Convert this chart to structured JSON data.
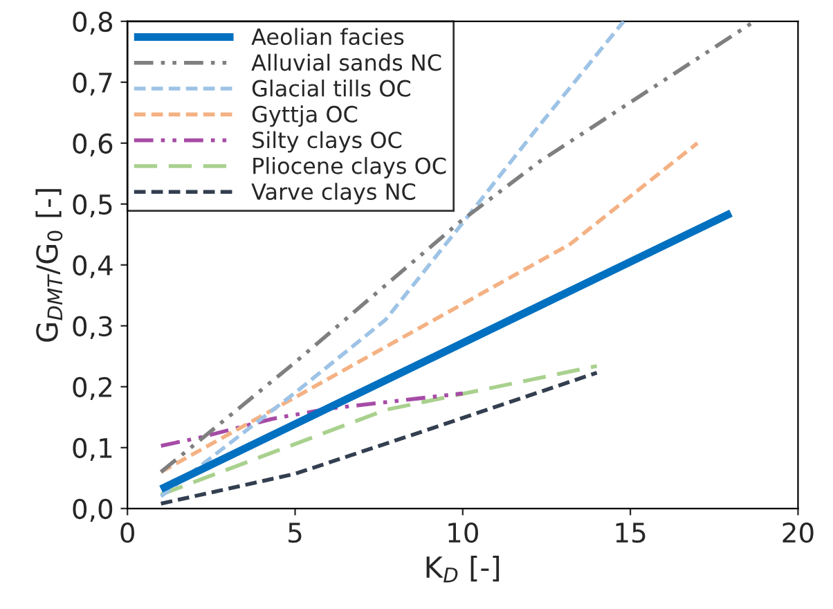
{
  "chart_data": {
    "type": "line",
    "xlabel": "K$_{D}$ [-]",
    "ylabel": "G$_{DMT}$/G$_{0}$ [-]",
    "xlim": [
      0,
      20
    ],
    "xticks": [
      0,
      5,
      10,
      15,
      20
    ],
    "ylim": [
      0,
      0.8
    ],
    "yticks": [
      {
        "value": 0,
        "label": "0,0"
      },
      {
        "value": 0.1,
        "label": "0,1"
      },
      {
        "value": 0.2,
        "label": "0,2"
      },
      {
        "value": 0.3,
        "label": "0,3"
      },
      {
        "value": 0.4,
        "label": "0,4"
      },
      {
        "value": 0.5,
        "label": "0,5"
      },
      {
        "value": 0.6,
        "label": "0,6"
      },
      {
        "value": 0.7,
        "label": "0,7"
      },
      {
        "value": 0.8,
        "label": "0,8"
      }
    ],
    "grid": false,
    "legend": "top left",
    "series": [
      {
        "name": "Aeolian facies",
        "color": "#0070c0",
        "line_style": "solid",
        "x": [
          1,
          18
        ],
        "values": [
          0.032,
          0.485
        ]
      },
      {
        "name": "Alluvial sands NC",
        "color": "#7f7f7f",
        "line_style": "dashdotdot",
        "x": [
          1,
          5,
          9.9,
          12.3,
          18.7
        ],
        "values": [
          0.06,
          0.24,
          0.47,
          0.57,
          0.8
        ]
      },
      {
        "name": "Glacial tills OC",
        "color": "#9dc3e6",
        "line_style": "dashed",
        "x": [
          1,
          5,
          7.7,
          10.3,
          12.3,
          14.8
        ],
        "values": [
          0.02,
          0.19,
          0.31,
          0.49,
          0.63,
          0.8
        ]
      },
      {
        "name": "Gyttja OC",
        "color": "#f4b183",
        "line_style": "dashed",
        "x": [
          1,
          13.2,
          17
        ],
        "values": [
          0.06,
          0.434,
          0.6
        ]
      },
      {
        "name": "Silty clays OC",
        "color": "#a64ca6",
        "line_style": "dashdotdot",
        "x": [
          1,
          2.2,
          4.3,
          6,
          10
        ],
        "values": [
          0.103,
          0.117,
          0.147,
          0.164,
          0.189
        ]
      },
      {
        "name": "Pliocene clays OC",
        "color": "#a9d18e",
        "line_style": "longdash",
        "x": [
          1,
          7.7,
          14
        ],
        "values": [
          0.023,
          0.162,
          0.234
        ]
      },
      {
        "name": "Varve clays NC",
        "color": "#333f50",
        "line_style": "dashed",
        "x": [
          1,
          5,
          9.1,
          14
        ],
        "values": [
          0.008,
          0.057,
          0.132,
          0.223
        ]
      }
    ]
  }
}
